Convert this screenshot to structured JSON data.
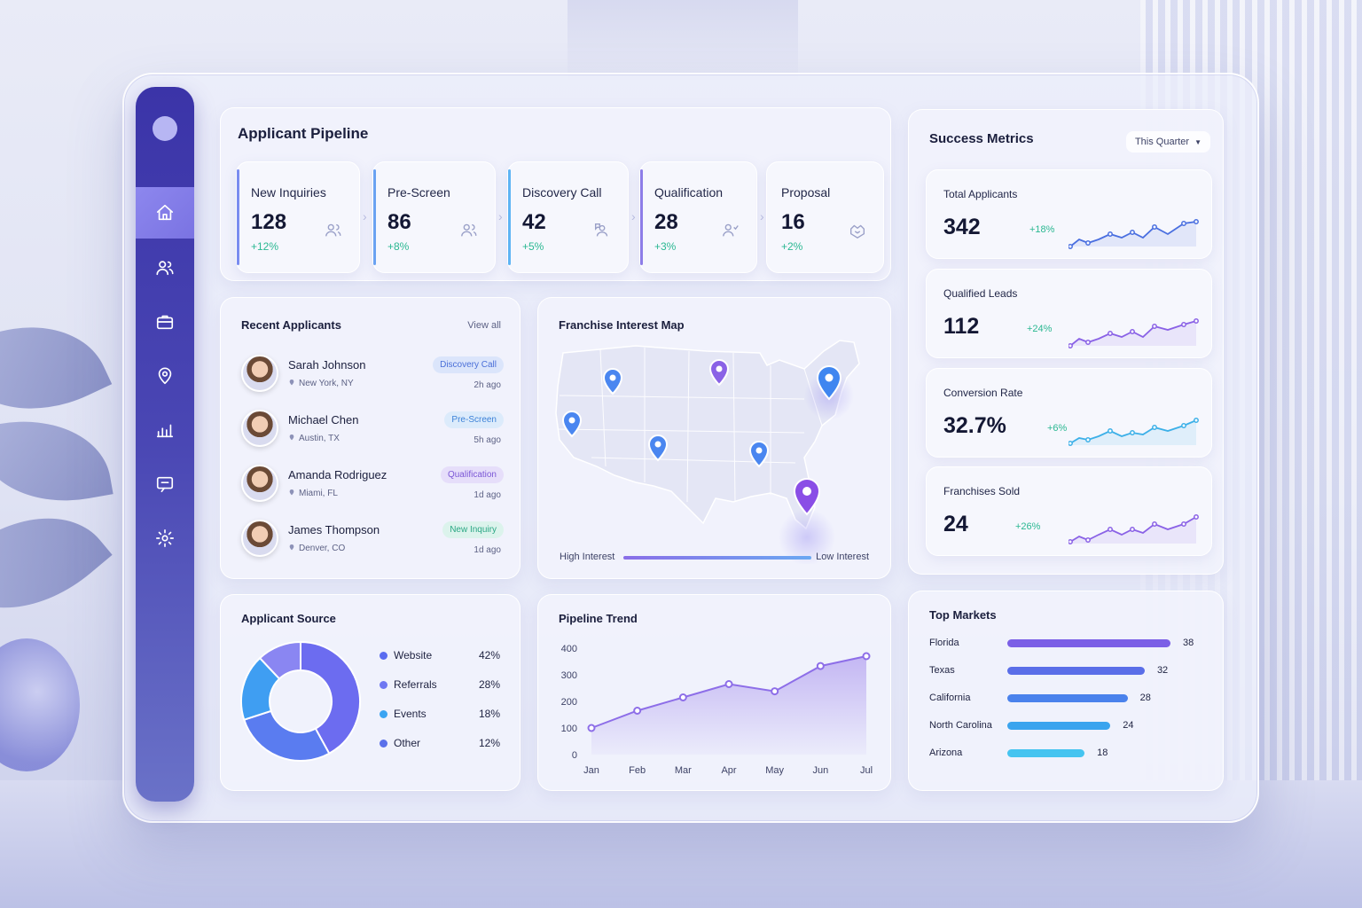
{
  "pipeline": {
    "title": "Applicant Pipeline",
    "stages": [
      {
        "label": "New Inquiries",
        "value": "128",
        "change": "+12%",
        "icon": "users-icon",
        "accent": "#7a8cf0"
      },
      {
        "label": "Pre-Screen",
        "value": "86",
        "change": "+8%",
        "icon": "users-icon",
        "accent": "#6aa2f2"
      },
      {
        "label": "Discovery Call",
        "value": "42",
        "change": "+5%",
        "icon": "user-chat-icon",
        "accent": "#5eb4f4"
      },
      {
        "label": "Qualification",
        "value": "28",
        "change": "+3%",
        "icon": "users-check-icon",
        "accent": "#8d7de8"
      },
      {
        "label": "Proposal",
        "value": "16",
        "change": "+2%",
        "icon": "handshake-icon",
        "accent": ""
      }
    ]
  },
  "recent": {
    "title": "Recent Applicants",
    "view_all": "View all",
    "items": [
      {
        "name": "Sarah Johnson",
        "location": "New York, NY",
        "badge": "Discovery Call",
        "time": "2h ago",
        "badge_bg": "#dbe5fb",
        "badge_color": "#4a6fd8"
      },
      {
        "name": "Michael Chen",
        "location": "Austin, TX",
        "badge": "Pre-Screen",
        "time": "5h ago",
        "badge_bg": "#dcebfb",
        "badge_color": "#3d82d8"
      },
      {
        "name": "Amanda Rodriguez",
        "location": "Miami, FL",
        "badge": "Qualification",
        "time": "1d ago",
        "badge_bg": "#e6defa",
        "badge_color": "#7b57d6"
      },
      {
        "name": "James Thompson",
        "location": "Denver, CO",
        "badge": "New Inquiry",
        "time": "1d ago",
        "badge_bg": "#dcf3ec",
        "badge_color": "#2aa784"
      }
    ]
  },
  "map": {
    "title": "Franchise Interest Map",
    "high_label": "High Interest",
    "low_label": "Low Interest"
  },
  "metrics": {
    "title": "Success Metrics",
    "period": "This Quarter",
    "items": [
      {
        "label": "Total Applicants",
        "value": "342",
        "change": "+18%",
        "color": "#4a6fe0"
      },
      {
        "label": "Qualified Leads",
        "value": "112",
        "change": "+24%",
        "color": "#8a62e6"
      },
      {
        "label": "Conversion Rate",
        "value": "32.7%",
        "change": "+6%",
        "color": "#3db0e8"
      },
      {
        "label": "Franchises Sold",
        "value": "24",
        "change": "+26%",
        "color": "#8a62e6"
      }
    ]
  },
  "source": {
    "title": "Applicant Source"
  },
  "trend": {
    "title": "Pipeline Trend"
  },
  "markets": {
    "title": "Top Markets"
  },
  "chart_data": [
    {
      "type": "pie",
      "categories": [
        "Website",
        "Referrals",
        "Events",
        "Other"
      ],
      "values": [
        42,
        28,
        18,
        12
      ],
      "labels": [
        "42%",
        "28%",
        "18%",
        "12%"
      ],
      "colors": [
        "#6b6ff0",
        "#7e86f2",
        "#3f9ef2",
        "#5a78ec"
      ],
      "legend": "right"
    },
    {
      "type": "area",
      "categories": [
        "Jan",
        "Feb",
        "Mar",
        "Apr",
        "May",
        "Jun",
        "Jul"
      ],
      "values": [
        100,
        165,
        215,
        265,
        238,
        333,
        370
      ],
      "yticks": [
        0,
        100,
        200,
        300,
        400
      ],
      "ylim": [
        0,
        400
      ],
      "color": "#8d6ee8"
    },
    {
      "type": "bar",
      "categories": [
        "Florida",
        "Texas",
        "California",
        "North Carolina",
        "Arizona"
      ],
      "values": [
        38,
        32,
        28,
        24,
        18
      ],
      "colors": [
        "#7b5fe6",
        "#5a6ee8",
        "#4a82ec",
        "#3aa4ee",
        "#45c4f0"
      ],
      "orientation": "horizontal"
    }
  ]
}
